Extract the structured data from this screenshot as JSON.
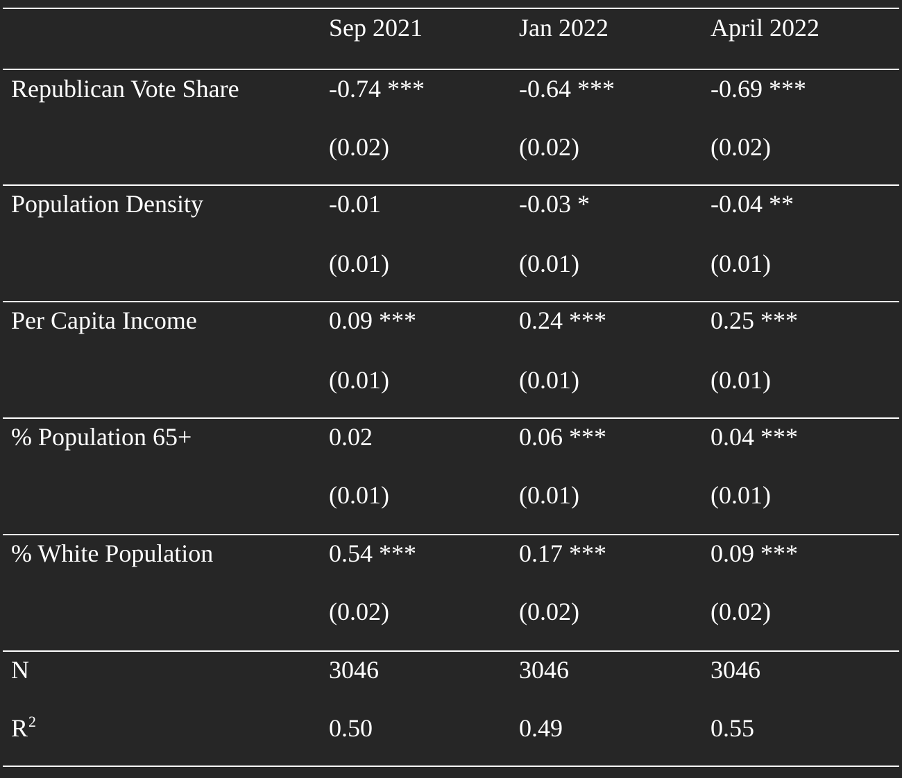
{
  "table": {
    "columns": [
      "",
      "Sep 2021",
      "Jan 2022",
      "April 2022"
    ],
    "rows": [
      {
        "label": "Republican Vote Share",
        "coef": [
          "-0.74 ***",
          "-0.64 ***",
          "-0.69 ***"
        ],
        "se": [
          "(0.02)",
          "(0.02)",
          "(0.02)"
        ]
      },
      {
        "label": "Population Density",
        "coef": [
          "-0.01",
          "-0.03 *",
          "-0.04 **"
        ],
        "se": [
          "(0.01)",
          "(0.01)",
          "(0.01)"
        ]
      },
      {
        "label": "Per Capita Income",
        "coef": [
          "0.09 ***",
          "0.24 ***",
          "0.25 ***"
        ],
        "se": [
          "(0.01)",
          "(0.01)",
          "(0.01)"
        ]
      },
      {
        "label": "% Population 65+",
        "coef": [
          "0.02",
          "0.06 ***",
          "0.04 ***"
        ],
        "se": [
          "(0.01)",
          "(0.01)",
          "(0.01)"
        ]
      },
      {
        "label": "% White Population",
        "coef": [
          "0.54 ***",
          "0.17 ***",
          "0.09 ***"
        ],
        "se": [
          "(0.02)",
          "(0.02)",
          "(0.02)"
        ]
      }
    ],
    "footer": {
      "n": {
        "label": "N",
        "values": [
          "3046",
          "3046",
          "3046"
        ]
      },
      "r2": {
        "label": "R",
        "label_sup": "2",
        "values": [
          "0.50",
          "0.49",
          "0.55"
        ]
      }
    }
  },
  "colors": {
    "background": "#262626",
    "text": "#ffffff",
    "rule": "#ffffff"
  }
}
